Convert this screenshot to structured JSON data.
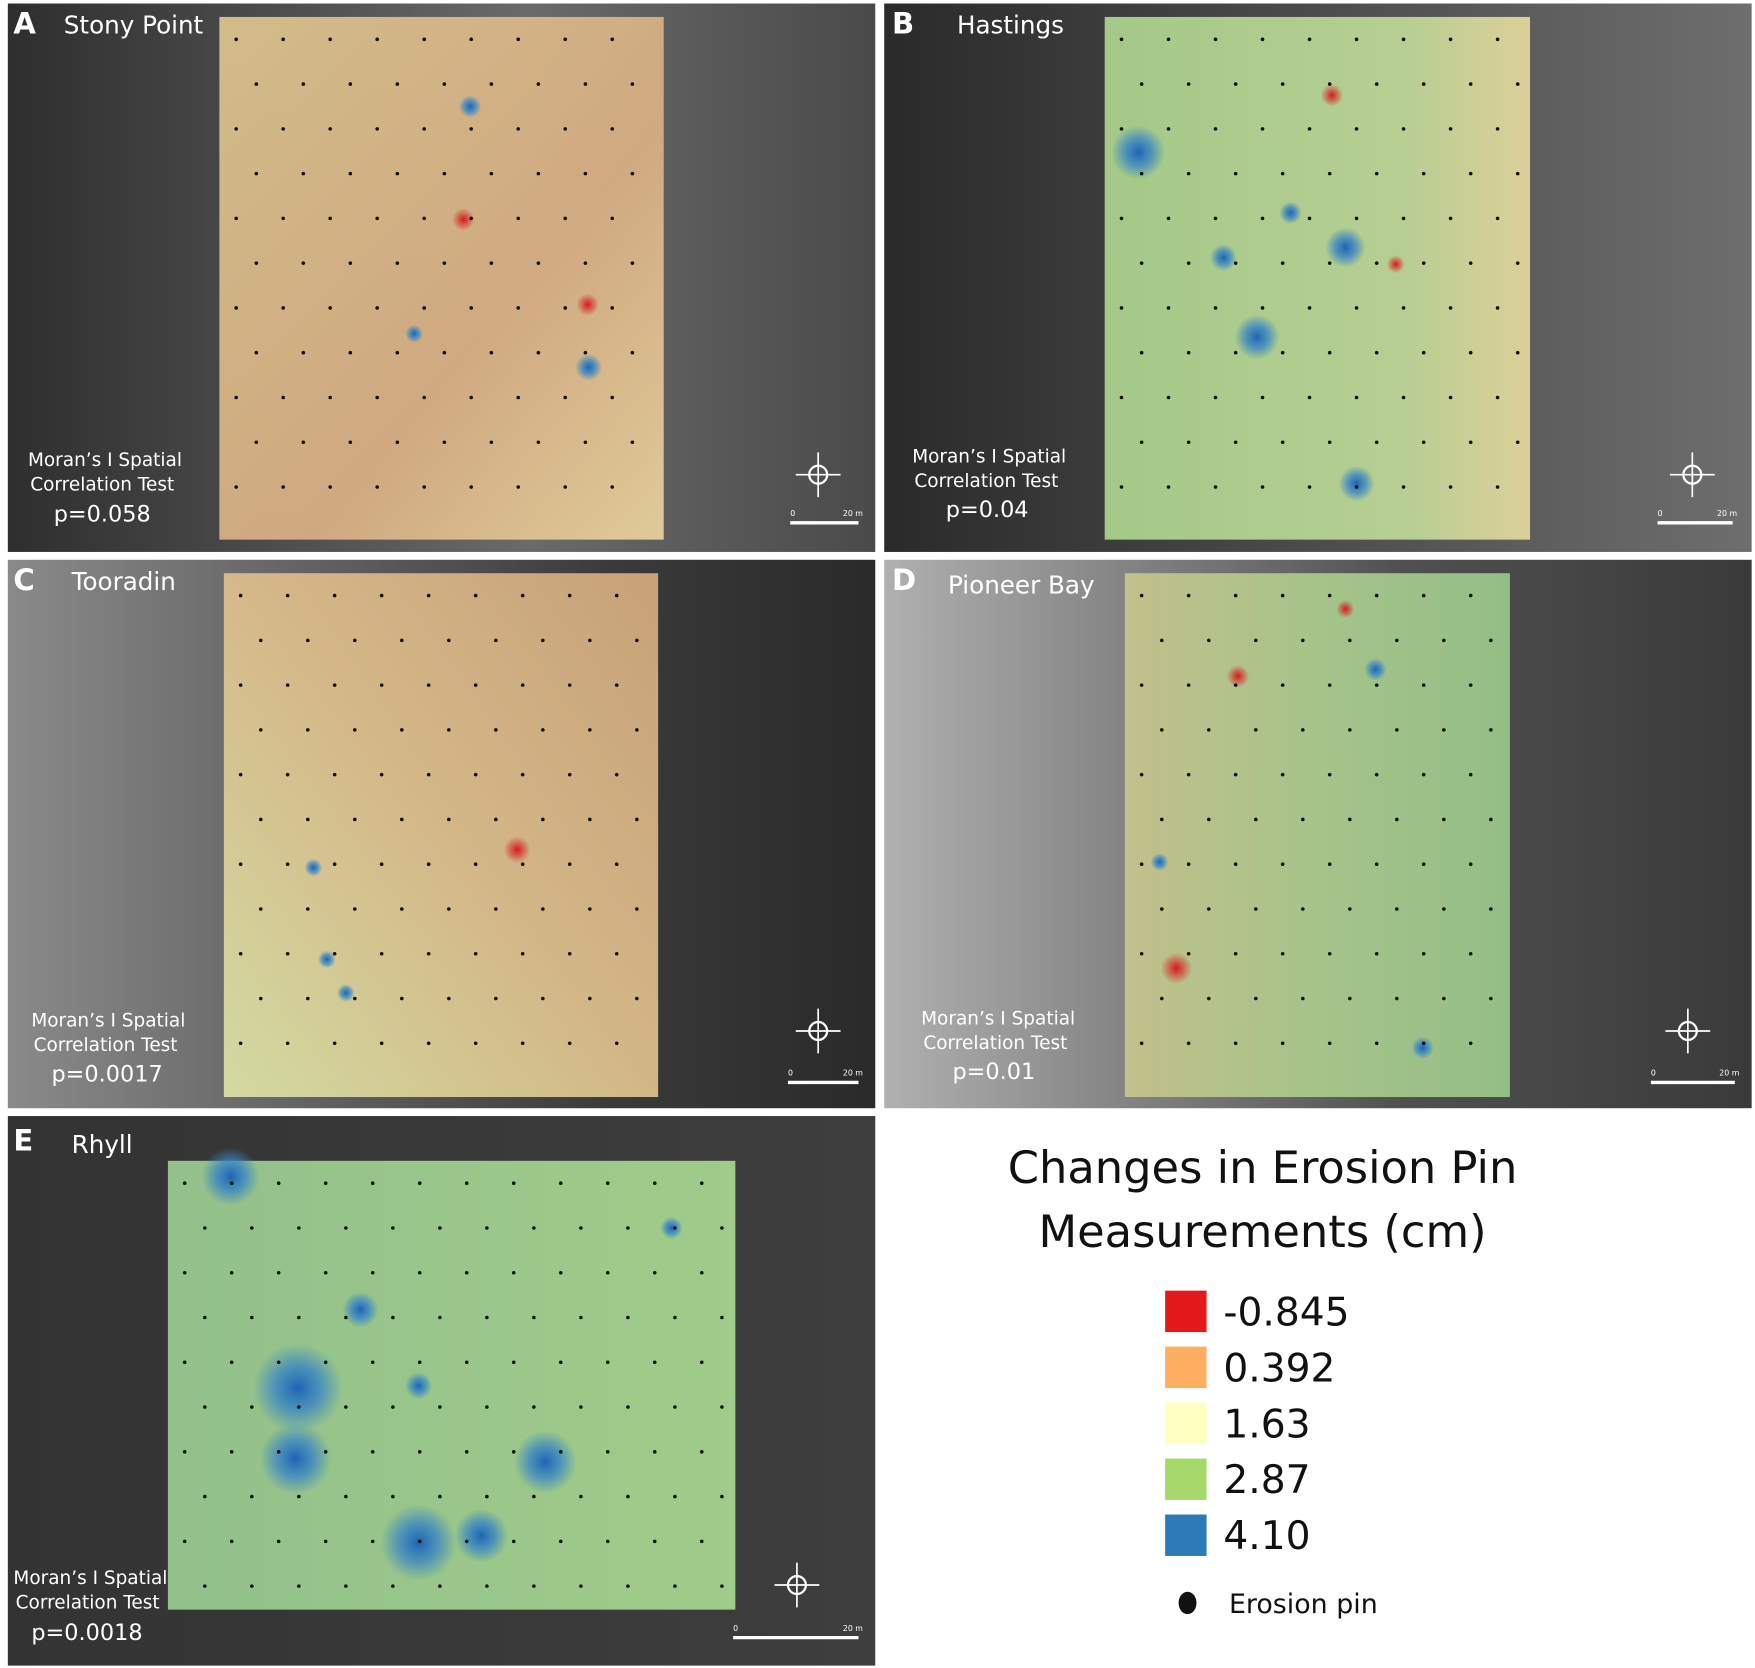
{
  "panels": [
    {
      "letter": "A",
      "name": "Stony Point",
      "test": [
        "Moran’s I Spatial",
        "Correlation Test"
      ],
      "p": "p=0.058",
      "scale": [
        "0",
        "20 m"
      ]
    },
    {
      "letter": "B",
      "name": "Hastings",
      "test": [
        "Moran’s I Spatial",
        "Correlation Test"
      ],
      "p": "p=0.04",
      "scale": [
        "0",
        "20 m"
      ]
    },
    {
      "letter": "C",
      "name": "Tooradin",
      "test": [
        "Moran’s I Spatial",
        "Correlation Test"
      ],
      "p": "p=0.0017",
      "scale": [
        "0",
        "20 m"
      ]
    },
    {
      "letter": "D",
      "name": "Pioneer Bay",
      "test": [
        "Moran’s I Spatial",
        "Correlation Test"
      ],
      "p": "p=0.01",
      "scale": [
        "0",
        "20 m"
      ]
    },
    {
      "letter": "E",
      "name": "Rhyll",
      "test": [
        "Moran’s I Spatial",
        "Correlation Test"
      ],
      "p": "p=0.0018",
      "scale": [
        "0",
        "20 m"
      ]
    }
  ],
  "legend": {
    "title": [
      "Changes in Erosion Pin",
      "Measurements (cm)"
    ],
    "items": [
      {
        "label": "-0.845",
        "color": "#e31a1c"
      },
      {
        "label": "0.392",
        "color": "#fdae61"
      },
      {
        "label": "1.63",
        "color": "#ffffbf"
      },
      {
        "label": "2.87",
        "color": "#a6d96a"
      },
      {
        "label": "4.10",
        "color": "#2c7bb6"
      }
    ],
    "pin_label": "Erosion pin"
  }
}
